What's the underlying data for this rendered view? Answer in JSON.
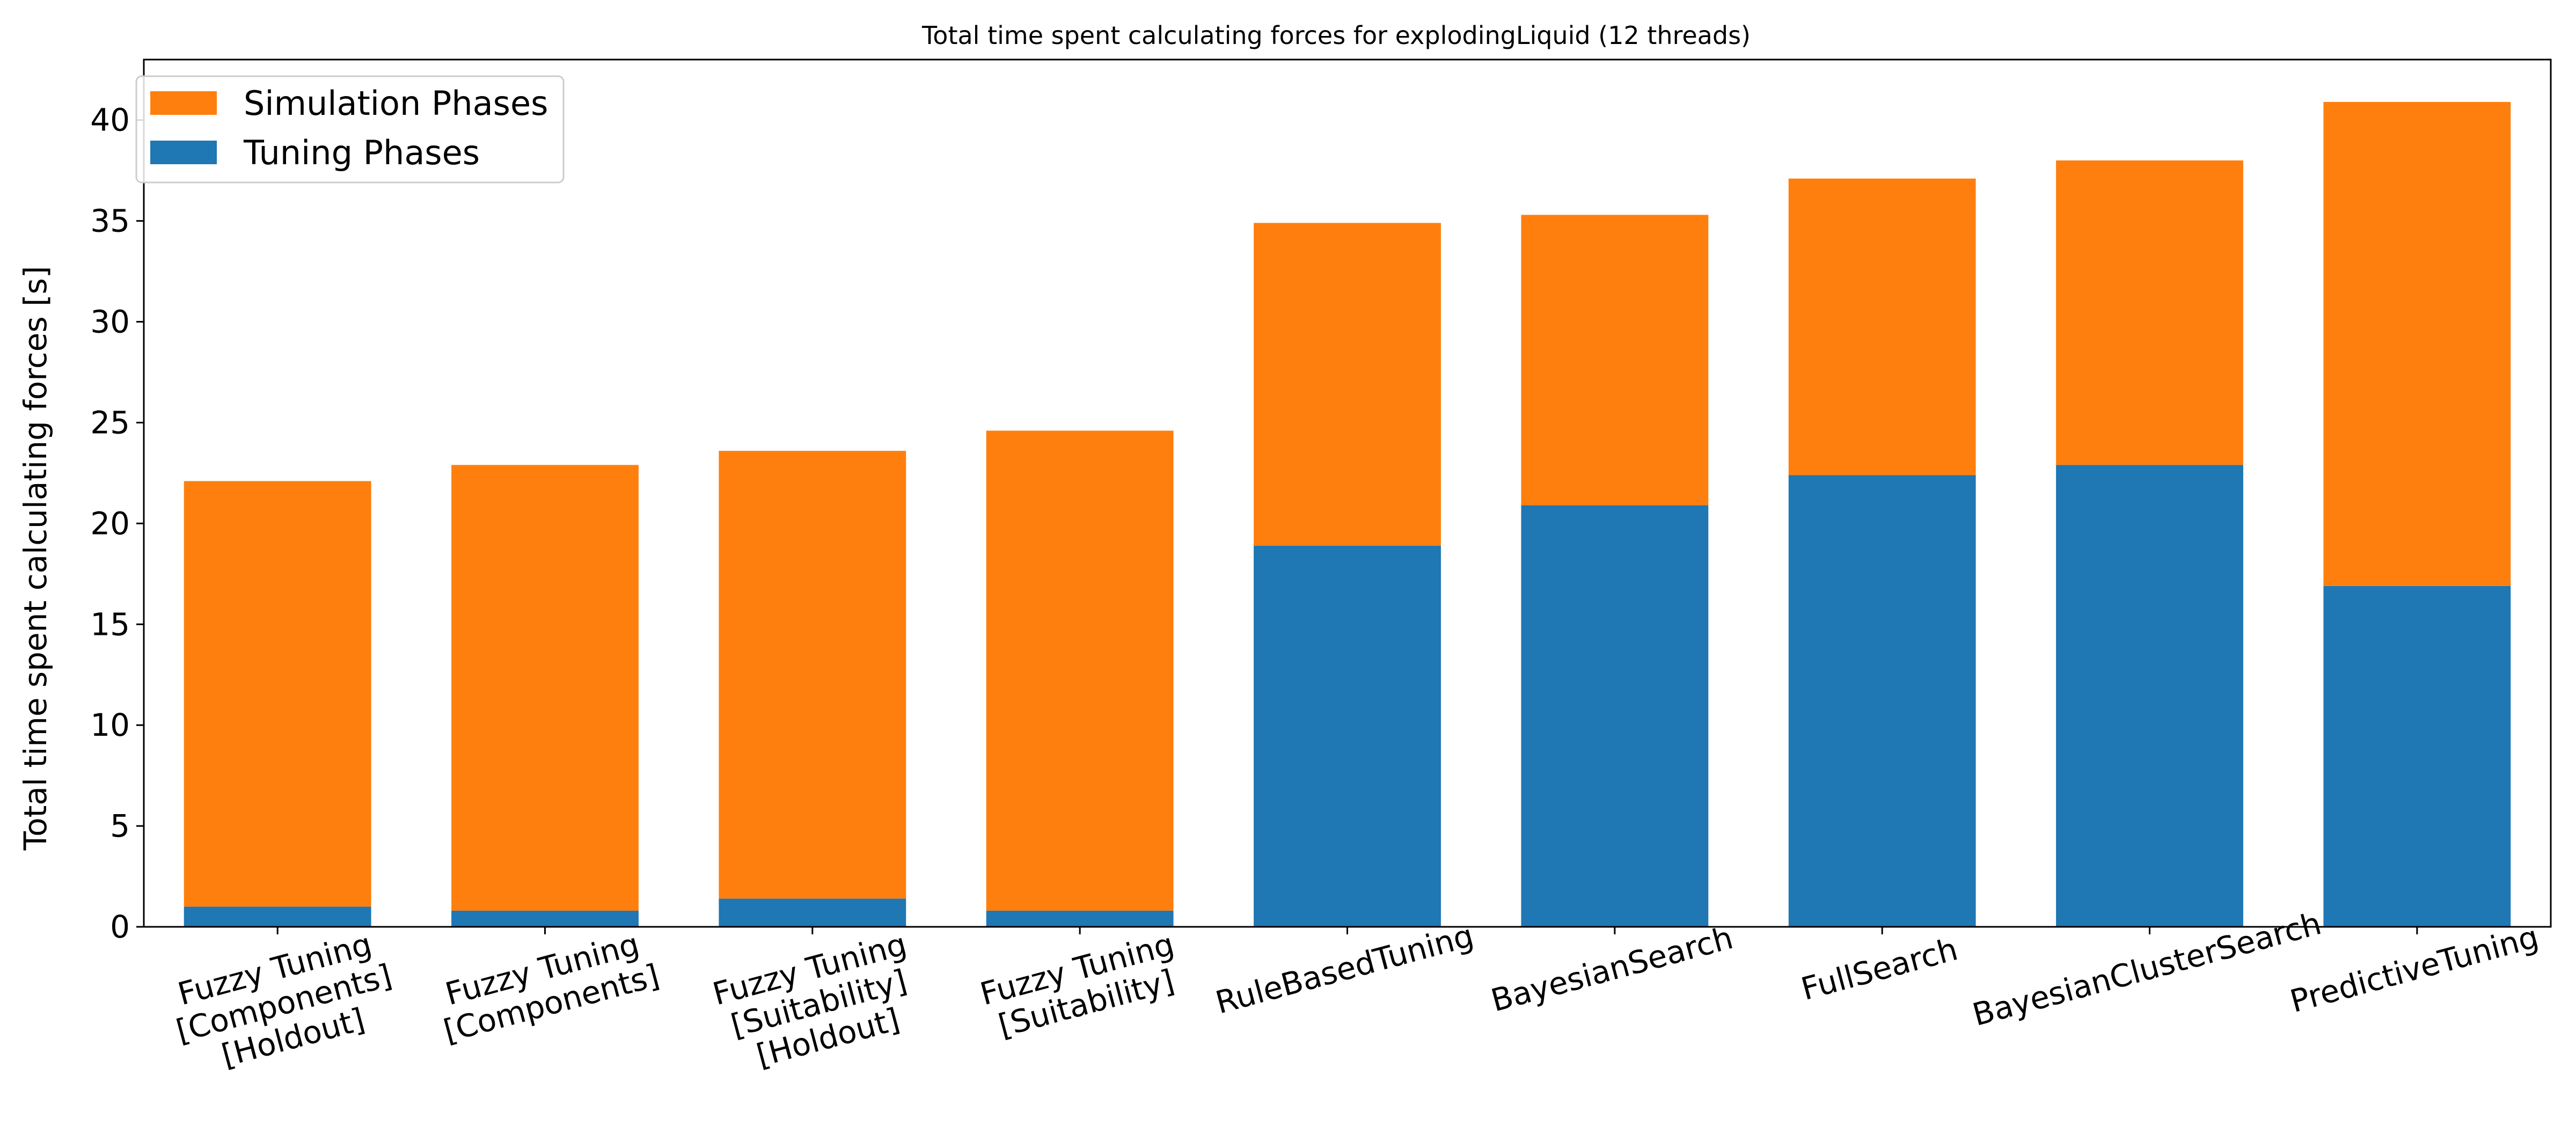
{
  "chart_data": {
    "type": "bar",
    "stacked": true,
    "title": "Total time spent calculating forces for explodingLiquid (12 threads)",
    "xlabel": "",
    "ylabel": "Total time spent calculating forces [s]",
    "ylim": [
      0,
      43
    ],
    "yticks": [
      0,
      5,
      10,
      15,
      20,
      25,
      30,
      35,
      40
    ],
    "grid": false,
    "legend_position": "top-left",
    "categories": [
      [
        "Fuzzy Tuning",
        "[Components]",
        "[Holdout]"
      ],
      [
        "Fuzzy Tuning",
        "[Components]"
      ],
      [
        "Fuzzy Tuning",
        "[Suitability]",
        "[Holdout]"
      ],
      [
        "Fuzzy Tuning",
        "[Suitability]"
      ],
      [
        "RuleBasedTuning"
      ],
      [
        "BayesianSearch"
      ],
      [
        "FullSearch"
      ],
      [
        "BayesianClusterSearch"
      ],
      [
        "PredictiveTuning"
      ]
    ],
    "series": [
      {
        "name": "Tuning Phases",
        "color": "#1f77b4",
        "values": [
          1.0,
          0.8,
          1.4,
          0.8,
          18.9,
          20.9,
          22.4,
          22.9,
          16.9
        ]
      },
      {
        "name": "Simulation Phases",
        "color": "#ff7f0e",
        "values": [
          21.1,
          22.1,
          22.2,
          23.8,
          16.0,
          14.4,
          14.7,
          15.1,
          24.0
        ]
      }
    ],
    "legend_order": [
      "Simulation Phases",
      "Tuning Phases"
    ]
  }
}
